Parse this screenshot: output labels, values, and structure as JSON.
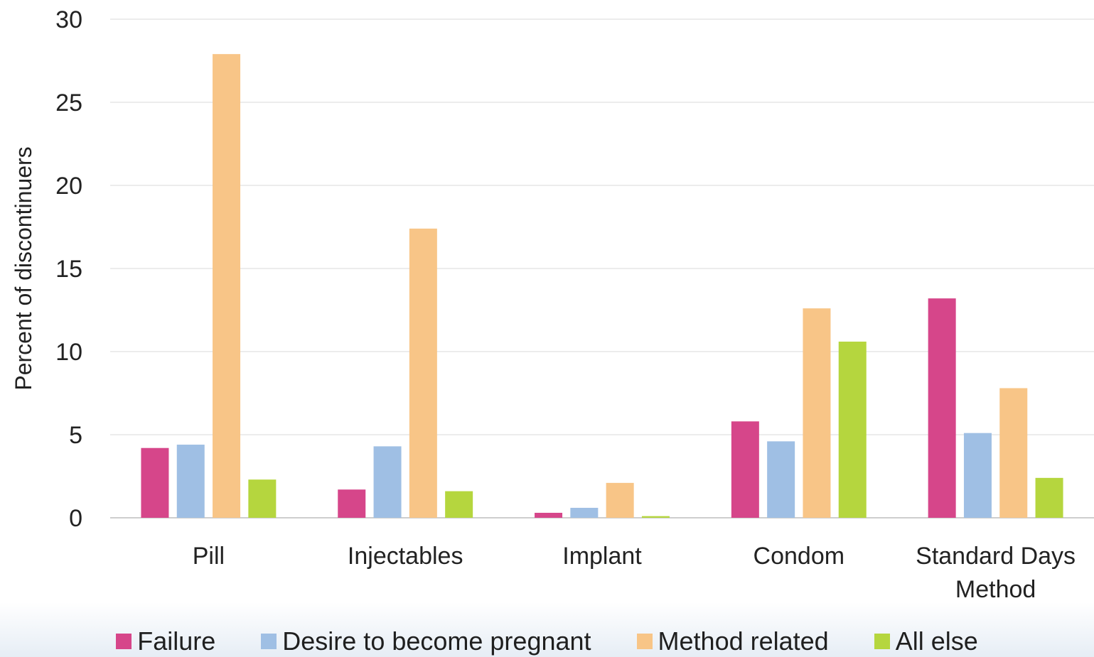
{
  "chart_data": {
    "type": "bar",
    "title": "",
    "xlabel": "",
    "ylabel": "Percent of discontinuers",
    "ylim": [
      0,
      30
    ],
    "yticks": [
      0,
      5,
      10,
      15,
      20,
      25,
      30
    ],
    "grid": true,
    "legend_position": "bottom",
    "categories": [
      [
        "Pill"
      ],
      [
        "Injectables"
      ],
      [
        "Implant"
      ],
      [
        "Condom"
      ],
      [
        "Standard Days",
        "Method"
      ]
    ],
    "series": [
      {
        "name": "Failure",
        "color": "#d6468a",
        "values": [
          4.2,
          1.7,
          0.3,
          5.8,
          13.2
        ]
      },
      {
        "name": "Desire to become pregnant",
        "color": "#9fbfe4",
        "values": [
          4.4,
          4.3,
          0.6,
          4.6,
          5.1
        ]
      },
      {
        "name": "Method related",
        "color": "#f8c587",
        "values": [
          27.9,
          17.4,
          2.1,
          12.6,
          7.8
        ]
      },
      {
        "name": "All else",
        "color": "#b5d63e",
        "values": [
          2.3,
          1.6,
          0.1,
          10.6,
          2.4
        ]
      }
    ]
  }
}
